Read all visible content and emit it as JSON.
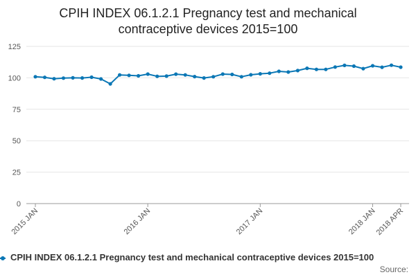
{
  "title_lines": [
    "CPIH INDEX 06.1.2.1 Pregnancy test and mechanical",
    "contraceptive devices 2015=100"
  ],
  "legend_label": "CPIH INDEX 06.1.2.1 Pregnancy test and mechanical contraceptive devices 2015=100",
  "source_label": "Source:",
  "colors": {
    "series": "#0b77b5",
    "grid": "#e6e6e6",
    "axis": "#999999"
  },
  "chart_data": {
    "type": "line",
    "title": "CPIH INDEX 06.1.2.1 Pregnancy test and mechanical contraceptive devices 2015=100",
    "xlabel": "",
    "ylabel": "",
    "ylim": [
      0,
      125
    ],
    "yticks": [
      0,
      25,
      50,
      75,
      100,
      125
    ],
    "grid": true,
    "legend_position": "bottom",
    "x_tick_labels": [
      {
        "label": "2015 JAN",
        "index": 0
      },
      {
        "label": "2016 JAN",
        "index": 12
      },
      {
        "label": "2017 JAN",
        "index": 24
      },
      {
        "label": "2018 JAN",
        "index": 36
      },
      {
        "label": "2018 APR",
        "index": 39
      }
    ],
    "x": [
      "2015 JAN",
      "2015 FEB",
      "2015 MAR",
      "2015 APR",
      "2015 MAY",
      "2015 JUN",
      "2015 JUL",
      "2015 AUG",
      "2015 SEP",
      "2015 OCT",
      "2015 NOV",
      "2015 DEC",
      "2016 JAN",
      "2016 FEB",
      "2016 MAR",
      "2016 APR",
      "2016 MAY",
      "2016 JUN",
      "2016 JUL",
      "2016 AUG",
      "2016 SEP",
      "2016 OCT",
      "2016 NOV",
      "2016 DEC",
      "2017 JAN",
      "2017 FEB",
      "2017 MAR",
      "2017 APR",
      "2017 MAY",
      "2017 JUN",
      "2017 JUL",
      "2017 AUG",
      "2017 SEP",
      "2017 OCT",
      "2017 NOV",
      "2017 DEC",
      "2018 JAN",
      "2018 FEB",
      "2018 MAR",
      "2018 APR"
    ],
    "series": [
      {
        "name": "CPIH INDEX 06.1.2.1 Pregnancy test and mechanical contraceptive devices 2015=100",
        "values": [
          100.9,
          100.4,
          99.3,
          99.8,
          100.0,
          99.9,
          100.5,
          99.1,
          95.2,
          102.3,
          102.0,
          101.6,
          103.0,
          101.2,
          101.4,
          102.9,
          102.3,
          101.0,
          99.9,
          100.9,
          103.0,
          102.7,
          100.9,
          102.4,
          103.2,
          103.7,
          105.2,
          104.6,
          105.8,
          107.6,
          106.7,
          106.7,
          108.6,
          109.9,
          109.3,
          107.3,
          109.6,
          108.4,
          110.0,
          108.5
        ]
      }
    ]
  }
}
